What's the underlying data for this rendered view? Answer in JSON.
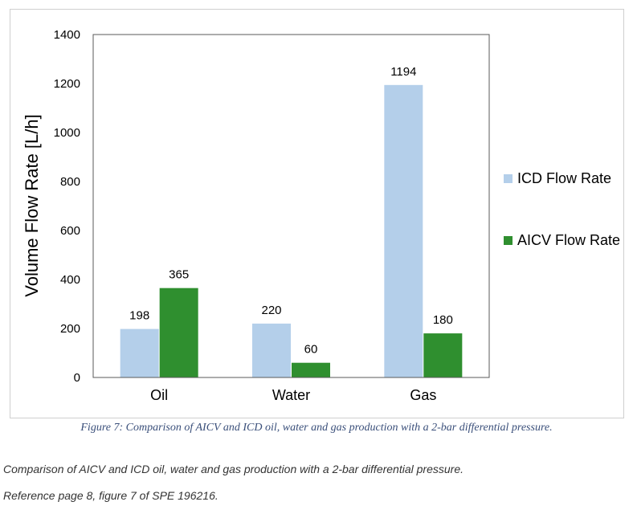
{
  "chart_data": {
    "type": "bar",
    "categories": [
      "Oil",
      "Water",
      "Gas"
    ],
    "series": [
      {
        "name": "ICD Flow Rate",
        "values": [
          198,
          220,
          1194
        ],
        "color": "#b4cfea"
      },
      {
        "name": "AICV Flow Rate",
        "values": [
          365,
          60,
          180
        ],
        "color": "#2f8f2f"
      }
    ],
    "ylabel": "Volume Flow Rate [L/h]",
    "ylim": [
      0,
      1400
    ],
    "yticks": [
      0,
      200,
      400,
      600,
      800,
      1000,
      1200,
      1400
    ],
    "grid": false,
    "legend_position": "right"
  },
  "figure_caption": "Figure 7: Comparison of AICV and ICD oil, water and gas production with a 2-bar differential pressure.",
  "notes": [
    "Comparison of AICV and ICD oil, water and gas production with a 2-bar differential pressure.",
    "Reference page 8, figure 7 of SPE 196216."
  ]
}
